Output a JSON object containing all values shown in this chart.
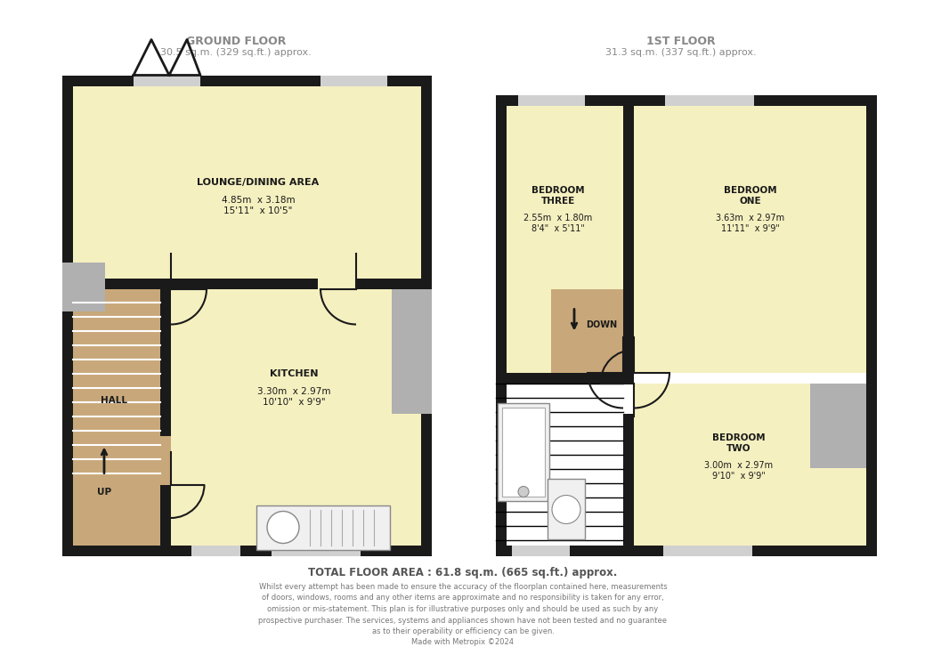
{
  "bg_color": "#ffffff",
  "wall_color": "#1a1a1a",
  "room_fill_yellow": "#f5f0c0",
  "room_fill_tan": "#c8a87a",
  "room_fill_gray": "#b0b0b0",
  "window_color": "#d0d0d0",
  "ground_floor_label": "GROUND FLOOR",
  "ground_floor_area": "30.5 sq.m. (329 sq.ft.) approx.",
  "first_floor_label": "1ST FLOOR",
  "first_floor_area": "31.3 sq.m. (337 sq.ft.) approx.",
  "total_area": "TOTAL FLOOR AREA : 61.8 sq.m. (665 sq.ft.) approx.",
  "disclaimer": "Whilst every attempt has been made to ensure the accuracy of the floorplan contained here, measurements\nof doors, windows, rooms and any other items are approximate and no responsibility is taken for any error,\nomission or mis-statement. This plan is for illustrative purposes only and should be used as such by any\nprospective purchaser. The services, systems and appliances shown have not been tested and no guarantee\nas to their operability or efficiency can be given.\nMade with Metropix ©2024",
  "lounge_label": "LOUNGE/DINING AREA",
  "lounge_dims": "4.85m  x 3.18m\n15'11\"  x 10'5\"",
  "kitchen_label": "KITCHEN",
  "kitchen_dims": "3.30m  x 2.97m\n10'10\"  x 9'9\"",
  "hall_label": "HALL",
  "up_label": "UP",
  "bed3_label": "BEDROOM\nTHREE",
  "bed3_dims": "2.55m  x 1.80m\n8'4\"  x 5'11\"",
  "bed1_label": "BEDROOM\nONE",
  "bed1_dims": "3.63m  x 2.97m\n11'11\"  x 9'9\"",
  "bed2_label": "BEDROOM\nTWO",
  "bed2_dims": "3.00m  x 2.97m\n9'10\"  x 9'9\"",
  "down_label": "DOWN",
  "header_color": "#888888",
  "text_color": "#1a1a1a"
}
